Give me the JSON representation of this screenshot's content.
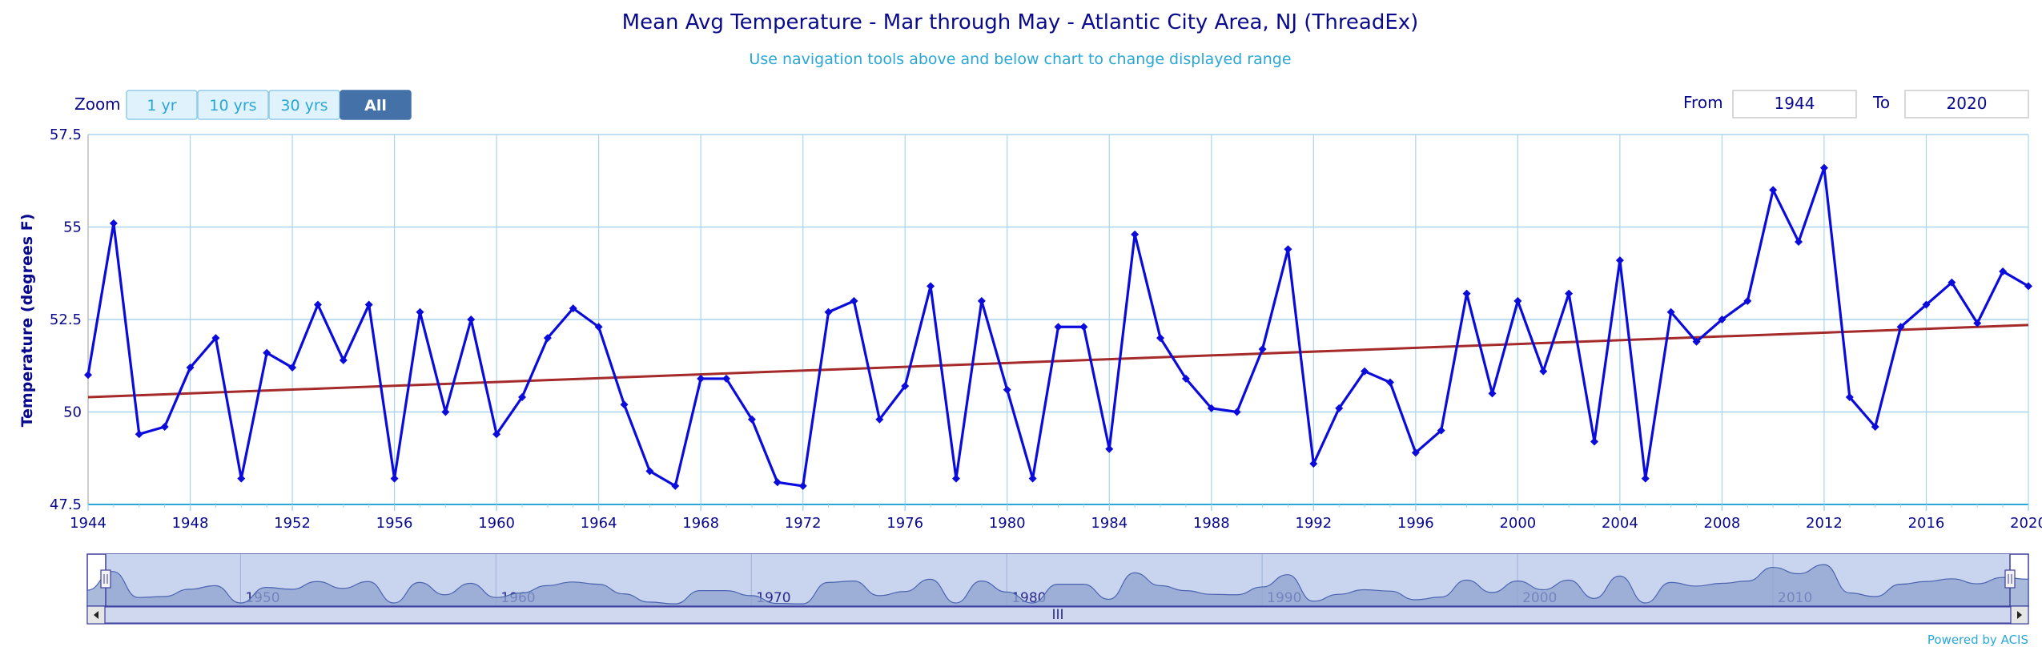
{
  "chart_data": {
    "type": "line",
    "title": "Mean Avg Temperature - Mar through May - Atlantic City Area, NJ (ThreadEx)",
    "subtitle": "Use navigation tools above and below chart to change displayed range",
    "ylabel": "Temperature (degrees F)",
    "xlabel": "",
    "ylim": [
      47.5,
      57.5
    ],
    "xlim": [
      1944,
      2020
    ],
    "y_ticks": [
      "47.5",
      "50",
      "52.5",
      "55",
      "57.5"
    ],
    "y_tick_values": [
      47.5,
      50,
      52.5,
      55,
      57.5
    ],
    "x_ticks": [
      "1944",
      "1948",
      "1952",
      "1956",
      "1960",
      "1964",
      "1968",
      "1972",
      "1976",
      "1980",
      "1984",
      "1988",
      "1992",
      "1996",
      "2000",
      "2004",
      "2008",
      "2012",
      "2016",
      "2020"
    ],
    "grid": true,
    "series": [
      {
        "x": [
          1944,
          1945,
          1946,
          1947,
          1948,
          1949,
          1950,
          1951,
          1952,
          1953,
          1954,
          1955,
          1956,
          1957,
          1958,
          1959,
          1960,
          1961,
          1962,
          1963,
          1964,
          1965,
          1966,
          1967,
          1968,
          1969,
          1970,
          1971,
          1972,
          1973,
          1974,
          1975,
          1976,
          1977,
          1978,
          1979,
          1980,
          1981,
          1982,
          1983,
          1984,
          1985,
          1986,
          1987,
          1988,
          1989,
          1990,
          1991,
          1992,
          1993,
          1994,
          1995,
          1996,
          1997,
          1998,
          1999,
          2000,
          2001,
          2002,
          2003,
          2004,
          2005,
          2006,
          2007,
          2008,
          2009,
          2010,
          2011,
          2012,
          2013,
          2014,
          2015,
          2016,
          2017,
          2018,
          2019,
          2020
        ],
        "values": [
          51.0,
          55.1,
          49.4,
          49.6,
          51.2,
          52.0,
          48.2,
          51.6,
          51.2,
          52.9,
          51.4,
          52.9,
          48.2,
          52.7,
          50.0,
          52.5,
          49.4,
          50.4,
          52.0,
          52.8,
          52.3,
          50.2,
          48.4,
          48.0,
          50.9,
          50.9,
          49.8,
          48.1,
          48.0,
          52.7,
          53.0,
          49.8,
          50.7,
          53.4,
          48.2,
          53.0,
          50.6,
          48.2,
          52.3,
          52.3,
          49.0,
          54.8,
          52.0,
          50.9,
          50.1,
          50.0,
          51.7,
          54.4,
          48.6,
          50.1,
          51.1,
          50.8,
          48.9,
          49.5,
          53.2,
          50.5,
          53.0,
          51.1,
          53.2,
          49.2,
          54.1,
          48.2,
          52.7,
          51.9,
          52.5,
          53.0,
          56.0,
          54.6,
          56.6,
          50.4,
          49.6,
          52.3,
          52.9,
          53.5,
          52.4,
          53.8,
          53.4
        ],
        "color": "#0b0bdc"
      },
      {
        "x": [
          1944,
          2020
        ],
        "values": [
          50.4,
          52.35
        ],
        "color": "#a52a2a"
      }
    ]
  },
  "zoom": {
    "label": "Zoom",
    "buttons": [
      "1 yr",
      "10 yrs",
      "30 yrs",
      "All"
    ],
    "active": "All"
  },
  "range": {
    "from_label": "From",
    "from_value": "1944",
    "to_label": "To",
    "to_value": "2020"
  },
  "navigator": {
    "tick_labels": [
      "1950",
      "1960",
      "1970",
      "1980",
      "1990",
      "2000",
      "2010"
    ],
    "tick_values": [
      1950,
      1960,
      1970,
      1980,
      1990,
      2000,
      2010
    ],
    "scroll_grip": "III"
  },
  "credit": "Powered by ACIS",
  "colors": {
    "line": "#0b0bdc",
    "trend": "#a52a2a",
    "grid": "#a8d4f0",
    "text": "#0a0a8c",
    "accent": "#2aa7d6",
    "button_active": "#4471a8",
    "button_inactive": "#e0f2fb"
  }
}
